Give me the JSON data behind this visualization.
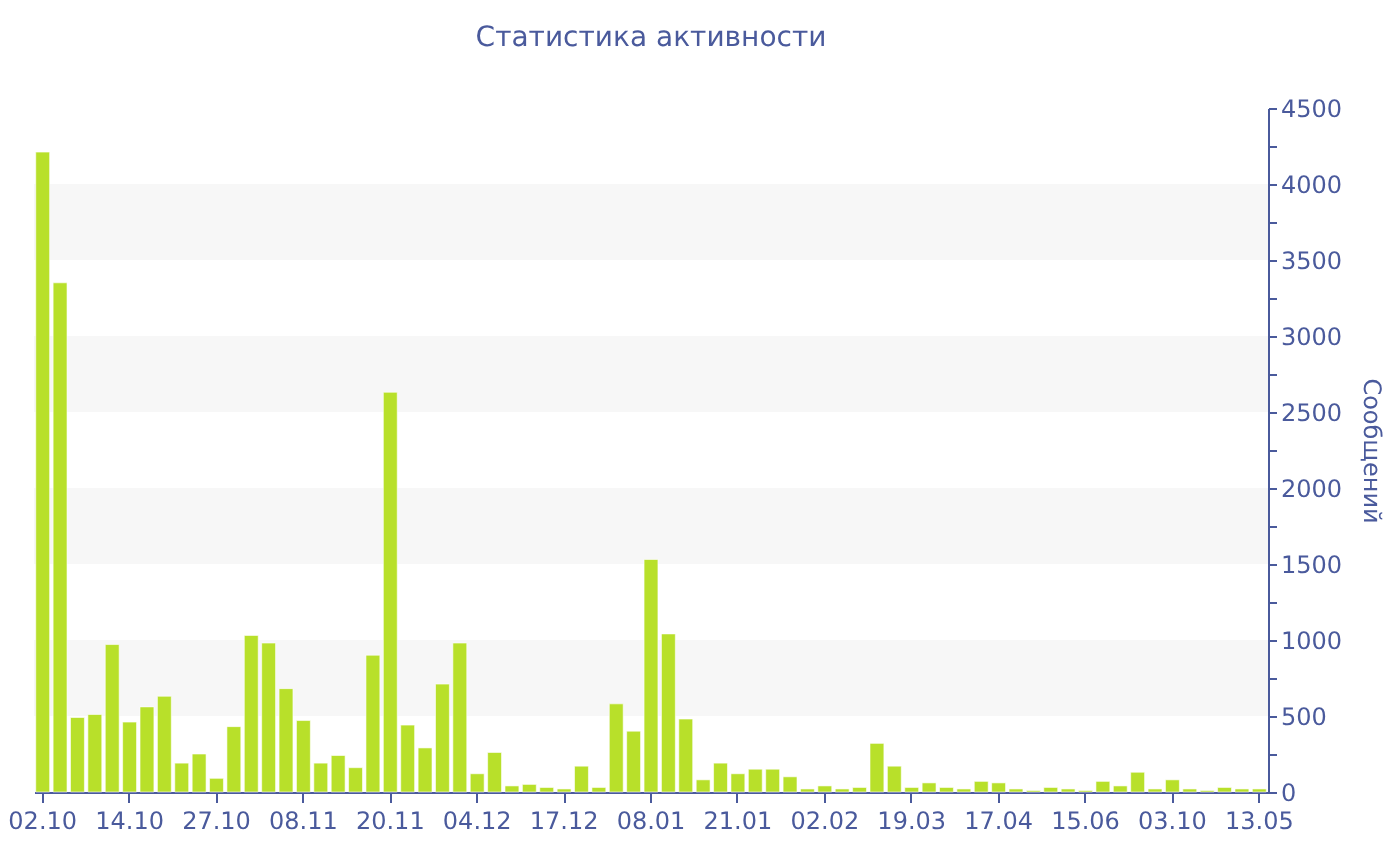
{
  "chart_data": {
    "type": "bar",
    "title": "Статистика активности",
    "ylabel": "Сообщений",
    "categories": [
      "02.10",
      null,
      null,
      null,
      null,
      "14.10",
      null,
      null,
      null,
      null,
      "27.10",
      null,
      null,
      null,
      null,
      "08.11",
      null,
      null,
      null,
      null,
      "20.11",
      null,
      null,
      null,
      null,
      "04.12",
      null,
      null,
      null,
      null,
      "17.12",
      null,
      null,
      null,
      null,
      "08.01",
      null,
      null,
      null,
      null,
      "21.01",
      null,
      null,
      null,
      null,
      "02.02",
      null,
      null,
      null,
      null,
      "19.03",
      null,
      null,
      null,
      null,
      "17.04",
      null,
      null,
      null,
      null,
      "15.06",
      null,
      null,
      null,
      null,
      "03.10",
      null,
      null,
      null,
      null,
      "13.05"
    ],
    "values": [
      4210,
      3350,
      490,
      510,
      970,
      460,
      560,
      630,
      190,
      250,
      90,
      430,
      1030,
      980,
      680,
      470,
      190,
      240,
      160,
      900,
      2630,
      440,
      290,
      710,
      980,
      120,
      260,
      40,
      50,
      30,
      20,
      170,
      30,
      580,
      400,
      1530,
      1040,
      480,
      80,
      190,
      120,
      150,
      150,
      100,
      20,
      40,
      20,
      30,
      320,
      170,
      30,
      60,
      30,
      20,
      70,
      60,
      20,
      10,
      30,
      20,
      10,
      70,
      40,
      130,
      20,
      80,
      20,
      10,
      30,
      20,
      20
    ],
    "color": "#b8e02a",
    "ylim": [
      0,
      4500
    ],
    "yticks": [
      0,
      {
        "value": 250,
        "label": null
      },
      500,
      {
        "value": 750,
        "label": null
      },
      1000,
      {
        "value": 1250,
        "label": null
      },
      1500,
      {
        "value": 1750,
        "label": null
      },
      2000,
      {
        "value": 2250,
        "label": null
      },
      2500,
      {
        "value": 2750,
        "label": null
      },
      3000,
      {
        "value": 3250,
        "label": null
      },
      3500,
      {
        "value": 3750,
        "label": null
      },
      4000,
      {
        "value": 4250,
        "label": null
      },
      4500
    ],
    "bands": [
      {
        "axis": "y",
        "from": 500,
        "to": 1000,
        "color": "#f7f7f7"
      },
      {
        "axis": "y",
        "from": 1500,
        "to": 2000,
        "color": "#f7f7f7"
      },
      {
        "axis": "y",
        "from": 2500,
        "to": 3000,
        "color": "#f7f7f7"
      },
      {
        "axis": "y",
        "from": 3500,
        "to": 4000,
        "color": "#f7f7f7"
      }
    ],
    "grid": false
  }
}
